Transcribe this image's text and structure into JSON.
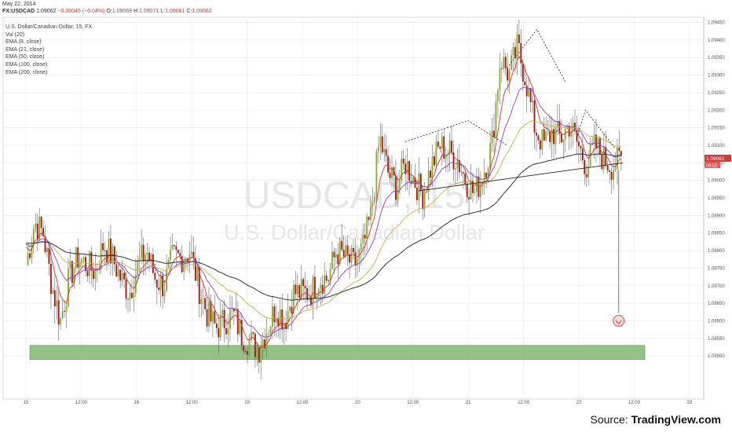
{
  "header": {
    "date": "May 22, 2014",
    "symbol": "FX:USDCAD",
    "last": "1.09062",
    "change": "−0.00045 (−0.04%)",
    "open_label": "O:",
    "open": "1.09069",
    "high_label": "H:",
    "high": "1.09071",
    "low_label": "L:",
    "low": "1.09061",
    "close_label": "C:",
    "close": "1.09062"
  },
  "legend": [
    "U.S. Dollar/Canadian Dollar, 15, FX",
    "Vol (20)",
    "EMA (8, close)",
    "EMA (21, close)",
    "EMA (50, close)",
    "EMA (100, close)",
    "EMA (200, close)"
  ],
  "watermark": {
    "symbol": "USDCAD",
    "interval": "15",
    "name": "U.S. Dollar/Canadian Dollar"
  },
  "source": {
    "prefix": "Source: ",
    "name": "TradingView.com"
  },
  "colors": {
    "candle_up": "#8dab2e",
    "candle_down": "#a01818",
    "ema8": "#d03a2a",
    "ema21": "#8b3fd6",
    "ema50": "#c8b24a",
    "ema200": "#333333",
    "support_zone": "#6fae5e",
    "arrow": "#e05050",
    "price_badge": "#d23b3b"
  },
  "chart_data": {
    "type": "candlestick",
    "interval": "15",
    "ylim": [
      1.0845,
      1.0945
    ],
    "x_ticks": [
      "15",
      "12:00",
      "16",
      "12:00",
      "19",
      "12:00",
      "20",
      "12:00",
      "21",
      "12:00",
      "22",
      "12:00",
      "23"
    ],
    "y_ticks": [
      "1.09450",
      "1.09400",
      "1.09350",
      "1.09300",
      "1.09250",
      "1.09200",
      "1.09150",
      "1.09100",
      "1.09050",
      "1.09000",
      "1.08950",
      "1.08900",
      "1.08850",
      "1.08800",
      "1.08750",
      "1.08700",
      "1.08650",
      "1.08600",
      "1.08550",
      "1.08500"
    ],
    "price_badge": {
      "value": "1.09062",
      "sub": "08:53"
    },
    "support_zone": [
      1.0849,
      1.0853
    ],
    "target_level": 1.086,
    "close_path": [
      1.0876,
      1.0888,
      1.0885,
      1.087,
      1.086,
      1.0872,
      1.0878,
      1.0876,
      1.0874,
      1.0882,
      1.0878,
      1.0872,
      1.0868,
      1.0876,
      1.088,
      1.0872,
      1.087,
      1.0878,
      1.0878,
      1.088,
      1.087,
      1.0862,
      1.0858,
      1.086,
      1.0862,
      1.0856,
      1.0854,
      1.0852,
      1.0858,
      1.0864,
      1.086,
      1.0868,
      1.0868,
      1.0868,
      1.0872,
      1.0872,
      1.088,
      1.0878,
      1.0876,
      1.088,
      1.089,
      1.0912,
      1.0902,
      1.0898,
      1.0905,
      1.09,
      1.0896,
      1.0904,
      1.091,
      1.0908,
      1.0906,
      1.09,
      1.0896,
      1.0902,
      1.091,
      1.0935,
      1.093,
      1.0938,
      1.0928,
      1.0915,
      1.091,
      1.0914,
      1.0912,
      1.0916,
      1.091,
      1.0904,
      1.091,
      1.0906,
      1.0904,
      1.0906
    ]
  }
}
